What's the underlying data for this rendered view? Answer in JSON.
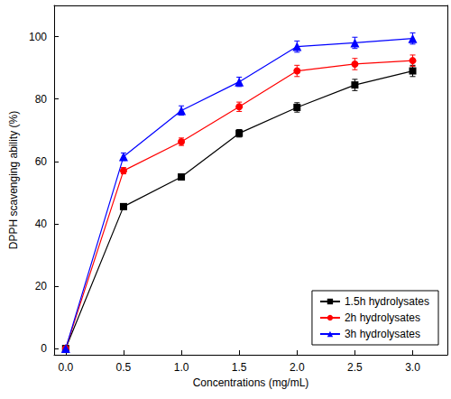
{
  "chart_data": {
    "type": "line",
    "x_label": "Concentrations (mg/mL)",
    "y_label": "DPPH scavenging ability (%)",
    "x": [
      0,
      0.5,
      1.0,
      1.5,
      2.0,
      2.5,
      3.0
    ],
    "series": [
      {
        "name": "1.5h hydrolysates",
        "color": "#000000",
        "marker": "square",
        "values": [
          0,
          45.5,
          55,
          69,
          77.3,
          84.5,
          89
        ],
        "errors": [
          0,
          0.8,
          0.8,
          1.2,
          1.5,
          1.8,
          1.8
        ]
      },
      {
        "name": "2h hydrolysates",
        "color": "#ff0000",
        "marker": "circle",
        "values": [
          0,
          57,
          66.3,
          77.5,
          89,
          91.2,
          92.3
        ],
        "errors": [
          0,
          1.0,
          1.2,
          1.5,
          1.8,
          1.8,
          1.8
        ]
      },
      {
        "name": "3h hydrolysates",
        "color": "#0000ff",
        "marker": "triangle",
        "values": [
          0,
          61.5,
          76.3,
          85.5,
          96.8,
          98,
          99.4
        ],
        "errors": [
          0,
          1.2,
          1.5,
          1.5,
          1.8,
          1.8,
          1.8
        ]
      }
    ],
    "xlim": [
      -0.1,
      3.3
    ],
    "xticks": [
      {
        "value": 0,
        "label": "0.0"
      },
      {
        "value": 0.5,
        "label": "0.5"
      },
      {
        "value": 1.0,
        "label": "1.0"
      },
      {
        "value": 1.5,
        "label": "1.5"
      },
      {
        "value": 2.0,
        "label": "2.0"
      },
      {
        "value": 2.5,
        "label": "2.5"
      },
      {
        "value": 3.0,
        "label": "3.0"
      }
    ],
    "ylim": [
      -2,
      110
    ],
    "yticks": [
      0,
      20,
      40,
      60,
      80,
      100
    ],
    "grid": false,
    "legend": "lower right"
  }
}
